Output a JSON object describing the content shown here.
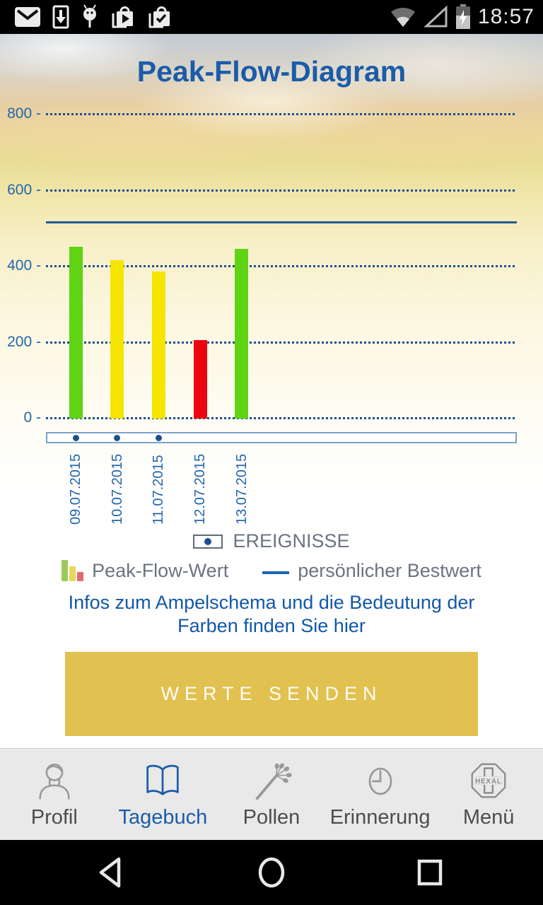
{
  "status_bar": {
    "time": "18:57",
    "left_icons": [
      "gmail-icon",
      "download-icon",
      "android-debug-icon",
      "app-update-icon",
      "app-updated-icon"
    ],
    "right_icons": [
      "wifi-icon",
      "signal-triangle-icon",
      "battery-charging-icon"
    ]
  },
  "header": {
    "title": "Peak-Flow-Diagram"
  },
  "chart_data": {
    "type": "bar",
    "title": "Peak-Flow-Diagram",
    "categories": [
      "09.07.2015",
      "10.07.2015",
      "11.07.2015",
      "12.07.2015",
      "13.07.2015"
    ],
    "values": [
      450,
      415,
      385,
      205,
      445
    ],
    "bar_colors": [
      "#5ed413",
      "#f5e500",
      "#f5e500",
      "#ec0510",
      "#5ed413"
    ],
    "best_value": 515,
    "events": [
      true,
      true,
      true,
      false,
      false
    ],
    "ylim": [
      0,
      800
    ],
    "yticks": [
      0,
      200,
      400,
      600,
      800
    ],
    "ytick_suffix": " -",
    "grid": "dotted horizontal, navy",
    "legend_position": "below",
    "grid_color": "#1d4f8f",
    "best_line_color": "#1e5c94"
  },
  "legend": {
    "events_label": "EREIGNISSE",
    "peak_flow_label": "Peak-Flow-Wert",
    "best_label": "persönlicher Bestwert"
  },
  "info_link": {
    "line1": "Infos zum Ampelschema und die Bedeutung der",
    "line2": "Farben finden Sie hier"
  },
  "send_button": {
    "label": "WERTE SENDEN"
  },
  "bottom_nav": {
    "items": [
      {
        "label": "Profil",
        "icon": "person-icon",
        "active": false
      },
      {
        "label": "Tagebuch",
        "icon": "book-icon",
        "active": true
      },
      {
        "label": "Pollen",
        "icon": "pollen-icon",
        "active": false
      },
      {
        "label": "Erinnerung",
        "icon": "clock-icon",
        "active": false
      },
      {
        "label": "Menü",
        "icon": "hexal-logo-icon",
        "active": false
      }
    ],
    "active_color": "#1b5ca9",
    "inactive_color": "#97999b"
  },
  "android_nav": {
    "buttons": [
      "back-icon",
      "home-icon",
      "recents-icon"
    ]
  }
}
